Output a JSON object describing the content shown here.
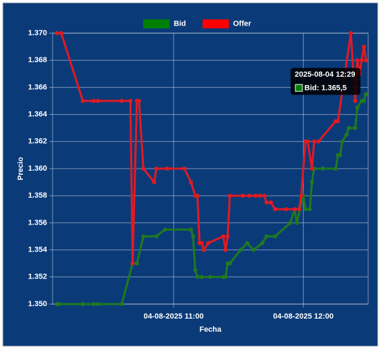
{
  "chart_data": {
    "type": "line",
    "x_label": "Fecha",
    "y_label": "Precio",
    "legend": "top",
    "grid": true,
    "xlim": [
      "04-08-2025 10:04",
      "04-08-2025 12:30"
    ],
    "xticks": [
      "04-08-2025 11:00",
      "04-08-2025 12:00"
    ],
    "ylim": [
      1.35,
      1.37
    ],
    "yticks": [
      {
        "value": 1.35,
        "label": "1.350"
      },
      {
        "value": 1.352,
        "label": "1.352"
      },
      {
        "value": 1.354,
        "label": "1.354"
      },
      {
        "value": 1.356,
        "label": "1.356"
      },
      {
        "value": 1.358,
        "label": "1.358"
      },
      {
        "value": 1.36,
        "label": "1.360"
      },
      {
        "value": 1.362,
        "label": "1.362"
      },
      {
        "value": 1.364,
        "label": "1.364"
      },
      {
        "value": 1.366,
        "label": "1.366"
      },
      {
        "value": 1.368,
        "label": "1.368"
      },
      {
        "value": 1.37,
        "label": "1.370"
      }
    ],
    "series": [
      {
        "name": "Bid",
        "color": "#1f7a1f",
        "legend_color": "#008000",
        "x": [
          "04-08-2025 10:06",
          "04-08-2025 10:07",
          "04-08-2025 10:18",
          "04-08-2025 10:23",
          "04-08-2025 10:25",
          "04-08-2025 10:36",
          "04-08-2025 10:41",
          "04-08-2025 10:43",
          "04-08-2025 10:46",
          "04-08-2025 10:52",
          "04-08-2025 10:56",
          "04-08-2025 11:08",
          "04-08-2025 11:09",
          "04-08-2025 11:10",
          "04-08-2025 11:11",
          "04-08-2025 11:13",
          "04-08-2025 11:17",
          "04-08-2025 11:23",
          "04-08-2025 11:24",
          "04-08-2025 11:25",
          "04-08-2025 11:26",
          "04-08-2025 11:31",
          "04-08-2025 11:34",
          "04-08-2025 11:37",
          "04-08-2025 11:41",
          "04-08-2025 11:43",
          "04-08-2025 11:47",
          "04-08-2025 11:54",
          "04-08-2025 11:56",
          "04-08-2025 11:57",
          "04-08-2025 12:00",
          "04-08-2025 12:01",
          "04-08-2025 12:03",
          "04-08-2025 12:04",
          "04-08-2025 12:05",
          "04-08-2025 12:09",
          "04-08-2025 12:15",
          "04-08-2025 12:16",
          "04-08-2025 12:17",
          "04-08-2025 12:18",
          "04-08-2025 12:20",
          "04-08-2025 12:21",
          "04-08-2025 12:24",
          "04-08-2025 12:25",
          "04-08-2025 12:27",
          "04-08-2025 12:28",
          "04-08-2025 12:29"
        ],
        "values": [
          1.35,
          1.35,
          1.35,
          1.35,
          1.35,
          1.35,
          1.353,
          1.353,
          1.355,
          1.355,
          1.3555,
          1.3555,
          1.355,
          1.3525,
          1.352,
          1.352,
          1.352,
          1.352,
          1.352,
          1.353,
          1.353,
          1.354,
          1.3545,
          1.354,
          1.3545,
          1.355,
          1.355,
          1.356,
          1.357,
          1.356,
          1.358,
          1.357,
          1.357,
          1.359,
          1.36,
          1.36,
          1.36,
          1.361,
          1.361,
          1.362,
          1.3625,
          1.363,
          1.363,
          1.3645,
          1.365,
          1.365,
          1.3655
        ]
      },
      {
        "name": "Offer",
        "color": "#e01b24",
        "legend_color": "#ff0000",
        "x": [
          "04-08-2025 10:06",
          "04-08-2025 10:08",
          "04-08-2025 10:18",
          "04-08-2025 10:23",
          "04-08-2025 10:25",
          "04-08-2025 10:36",
          "04-08-2025 10:40",
          "04-08-2025 10:41",
          "04-08-2025 10:43",
          "04-08-2025 10:44",
          "04-08-2025 10:46",
          "04-08-2025 10:51",
          "04-08-2025 10:52",
          "04-08-2025 10:57",
          "04-08-2025 11:05",
          "04-08-2025 11:08",
          "04-08-2025 11:10",
          "04-08-2025 11:11",
          "04-08-2025 11:12",
          "04-08-2025 11:13",
          "04-08-2025 11:14",
          "04-08-2025 11:16",
          "04-08-2025 11:23",
          "04-08-2025 11:24",
          "04-08-2025 11:25",
          "04-08-2025 11:26",
          "04-08-2025 11:32",
          "04-08-2025 11:35",
          "04-08-2025 11:38",
          "04-08-2025 11:40",
          "04-08-2025 11:42",
          "04-08-2025 11:43",
          "04-08-2025 11:45",
          "04-08-2025 11:47",
          "04-08-2025 11:52",
          "04-08-2025 11:56",
          "04-08-2025 11:58",
          "04-08-2025 11:59",
          "04-08-2025 12:01",
          "04-08-2025 12:02",
          "04-08-2025 12:04",
          "04-08-2025 12:05",
          "04-08-2025 12:07",
          "04-08-2025 12:15",
          "04-08-2025 12:16",
          "04-08-2025 12:22",
          "04-08-2025 12:24",
          "04-08-2025 12:25",
          "04-08-2025 12:26",
          "04-08-2025 12:27",
          "04-08-2025 12:28",
          "04-08-2025 12:29"
        ],
        "values": [
          1.37,
          1.37,
          1.365,
          1.365,
          1.365,
          1.365,
          1.365,
          1.353,
          1.365,
          1.365,
          1.36,
          1.359,
          1.36,
          1.36,
          1.36,
          1.359,
          1.358,
          1.358,
          1.3545,
          1.3545,
          1.354,
          1.3545,
          1.355,
          1.354,
          1.355,
          1.358,
          1.358,
          1.358,
          1.358,
          1.358,
          1.358,
          1.3575,
          1.3575,
          1.357,
          1.357,
          1.357,
          1.357,
          1.358,
          1.362,
          1.362,
          1.36,
          1.362,
          1.362,
          1.3635,
          1.3635,
          1.37,
          1.365,
          1.368,
          1.367,
          1.368,
          1.369,
          1.368
        ]
      }
    ],
    "tooltip": {
      "title": "2025-08-04 12:29",
      "label": "Bid: 1.365,5"
    }
  }
}
